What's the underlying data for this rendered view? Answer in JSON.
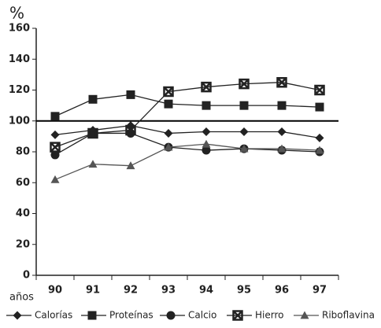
{
  "chart_data": {
    "type": "line",
    "y_label": "%",
    "x_label": "años",
    "categories": [
      "90",
      "91",
      "92",
      "93",
      "94",
      "95",
      "96",
      "97"
    ],
    "ylim": [
      0,
      160
    ],
    "yticks": [
      0,
      20,
      40,
      60,
      80,
      100,
      120,
      140,
      160
    ],
    "reference_line": 100,
    "series": [
      {
        "name": "Calorías",
        "color": "#222222",
        "marker": "diamond",
        "values": [
          91,
          94,
          97,
          92,
          93,
          93,
          93,
          89
        ]
      },
      {
        "name": "Proteínas",
        "color": "#222222",
        "marker": "square",
        "values": [
          103,
          114,
          117,
          111,
          110,
          110,
          110,
          109
        ]
      },
      {
        "name": "Calcio",
        "color": "#222222",
        "marker": "circle",
        "values": [
          78,
          92,
          92,
          83,
          81,
          82,
          81,
          80
        ]
      },
      {
        "name": "Hierro",
        "color": "#222222",
        "marker": "xsquare",
        "values": [
          83,
          92,
          94,
          119,
          122,
          124,
          125,
          120
        ]
      },
      {
        "name": "Riboflavina",
        "color": "#555555",
        "marker": "triangle",
        "values": [
          62,
          72,
          71,
          83,
          85,
          82,
          82,
          81
        ]
      }
    ]
  }
}
